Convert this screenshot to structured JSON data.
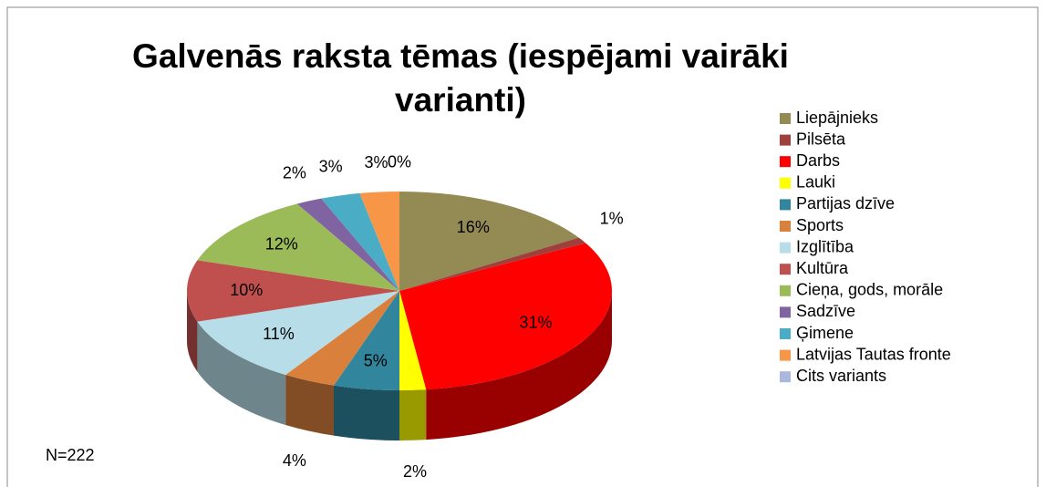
{
  "chart_data": {
    "type": "pie",
    "title": "Galvenās raksta tēmas (iespējami vairāki varianti)",
    "categories": [
      "Liepājnieks",
      "Pilsēta",
      "Darbs",
      "Lauki",
      "Partijas dzīve",
      "Sports",
      "Izglītība",
      "Kultūra",
      "Cieņa, gods, morāle",
      "Sadzīve",
      "Ģimene",
      "Latvijas Tautas fronte",
      "Cits variants"
    ],
    "values": [
      16,
      1,
      31,
      2,
      5,
      4,
      11,
      10,
      12,
      2,
      3,
      3,
      0
    ],
    "value_labels": [
      "16%",
      "1%",
      "31%",
      "2%",
      "5%",
      "4%",
      "11%",
      "10%",
      "12%",
      "2%",
      "3%",
      "3%",
      "0%"
    ],
    "colors": [
      "#948a54",
      "#a0403d",
      "#ff0000",
      "#ffff00",
      "#31859c",
      "#d9803c",
      "#b7dde8",
      "#c0504d",
      "#9bbb59",
      "#8064a2",
      "#4bacc6",
      "#f79646",
      "#a9b8dc"
    ],
    "legend": "right",
    "annotation": "N=222"
  }
}
